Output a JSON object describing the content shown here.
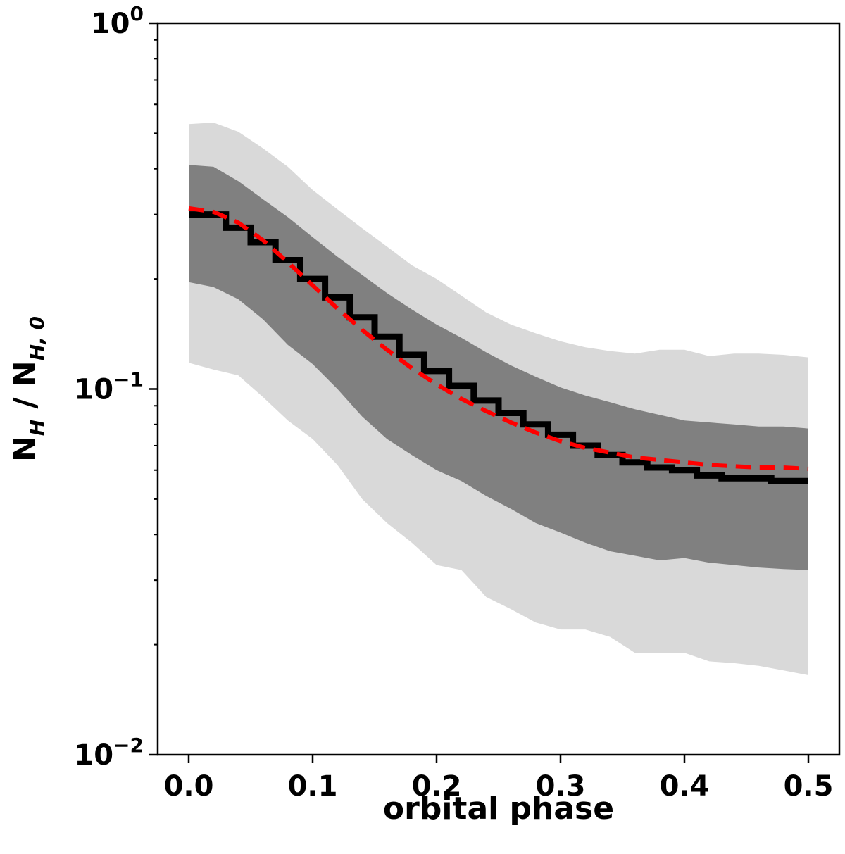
{
  "chart_data": {
    "type": "line",
    "title": "",
    "xlabel": "orbital phase",
    "ylabel": {
      "main": "N",
      "sub1": "H",
      "sep": " / N",
      "sub2": "H, 0"
    },
    "xlim": [
      -0.025,
      0.525
    ],
    "ylim": [
      0.01,
      1.0
    ],
    "yscale": "log",
    "grid": false,
    "legend": "none",
    "x_ticks": [
      {
        "value": 0.0,
        "label": "0.0"
      },
      {
        "value": 0.1,
        "label": "0.1"
      },
      {
        "value": 0.2,
        "label": "0.2"
      },
      {
        "value": 0.3,
        "label": "0.3"
      },
      {
        "value": 0.4,
        "label": "0.4"
      },
      {
        "value": 0.5,
        "label": "0.5"
      }
    ],
    "y_ticks": [
      {
        "value": 1.0,
        "base": "10",
        "exp": "0"
      },
      {
        "value": 0.1,
        "base": "10",
        "exp": "−1"
      },
      {
        "value": 0.01,
        "base": "10",
        "exp": "−2"
      }
    ],
    "colors": {
      "outer_band": "#d9d9d9",
      "inner_band": "#808080",
      "step_line": "#000000",
      "model_line": "#ff0000"
    },
    "bands_x": [
      0.0,
      0.02,
      0.04,
      0.06,
      0.08,
      0.1,
      0.12,
      0.14,
      0.16,
      0.18,
      0.2,
      0.22,
      0.24,
      0.26,
      0.28,
      0.3,
      0.32,
      0.34,
      0.36,
      0.38,
      0.4,
      0.42,
      0.44,
      0.46,
      0.48,
      0.5
    ],
    "outer_band": {
      "upper": [
        0.53,
        0.535,
        0.505,
        0.455,
        0.405,
        0.35,
        0.31,
        0.275,
        0.245,
        0.218,
        0.2,
        0.18,
        0.162,
        0.15,
        0.142,
        0.135,
        0.13,
        0.127,
        0.125,
        0.128,
        0.128,
        0.123,
        0.125,
        0.125,
        0.124,
        0.122
      ],
      "lower": [
        0.118,
        0.113,
        0.109,
        0.095,
        0.082,
        0.073,
        0.062,
        0.05,
        0.043,
        0.038,
        0.033,
        0.032,
        0.027,
        0.025,
        0.023,
        0.022,
        0.022,
        0.021,
        0.019,
        0.019,
        0.019,
        0.018,
        0.0178,
        0.0175,
        0.017,
        0.0165
      ]
    },
    "inner_band": {
      "upper": [
        0.41,
        0.405,
        0.37,
        0.33,
        0.295,
        0.26,
        0.23,
        0.205,
        0.183,
        0.165,
        0.15,
        0.138,
        0.126,
        0.116,
        0.108,
        0.101,
        0.096,
        0.092,
        0.088,
        0.085,
        0.082,
        0.081,
        0.08,
        0.079,
        0.079,
        0.078
      ],
      "lower": [
        0.196,
        0.19,
        0.176,
        0.155,
        0.132,
        0.117,
        0.1,
        0.084,
        0.073,
        0.066,
        0.06,
        0.056,
        0.051,
        0.047,
        0.043,
        0.0405,
        0.038,
        0.036,
        0.035,
        0.034,
        0.0345,
        0.0335,
        0.033,
        0.0325,
        0.0322,
        0.032
      ]
    },
    "series": [
      {
        "kind": "step",
        "edges": [
          0.0,
          0.03,
          0.05,
          0.07,
          0.09,
          0.11,
          0.13,
          0.15,
          0.17,
          0.19,
          0.21,
          0.23,
          0.25,
          0.27,
          0.29,
          0.31,
          0.33,
          0.35,
          0.37,
          0.39,
          0.41,
          0.43,
          0.45,
          0.47,
          0.5
        ],
        "values": [
          0.3,
          0.276,
          0.252,
          0.225,
          0.2,
          0.178,
          0.157,
          0.139,
          0.124,
          0.112,
          0.102,
          0.093,
          0.086,
          0.08,
          0.075,
          0.07,
          0.066,
          0.063,
          0.061,
          0.06,
          0.058,
          0.057,
          0.057,
          0.056
        ]
      },
      {
        "kind": "dashed",
        "x": [
          0.0,
          0.02,
          0.04,
          0.06,
          0.08,
          0.1,
          0.12,
          0.14,
          0.16,
          0.18,
          0.2,
          0.22,
          0.24,
          0.26,
          0.28,
          0.3,
          0.32,
          0.34,
          0.36,
          0.38,
          0.4,
          0.42,
          0.44,
          0.46,
          0.48,
          0.5
        ],
        "values": [
          0.312,
          0.305,
          0.285,
          0.255,
          0.222,
          0.192,
          0.166,
          0.145,
          0.128,
          0.114,
          0.103,
          0.094,
          0.087,
          0.081,
          0.076,
          0.072,
          0.069,
          0.067,
          0.065,
          0.064,
          0.063,
          0.062,
          0.0615,
          0.061,
          0.061,
          0.0605
        ]
      }
    ]
  }
}
